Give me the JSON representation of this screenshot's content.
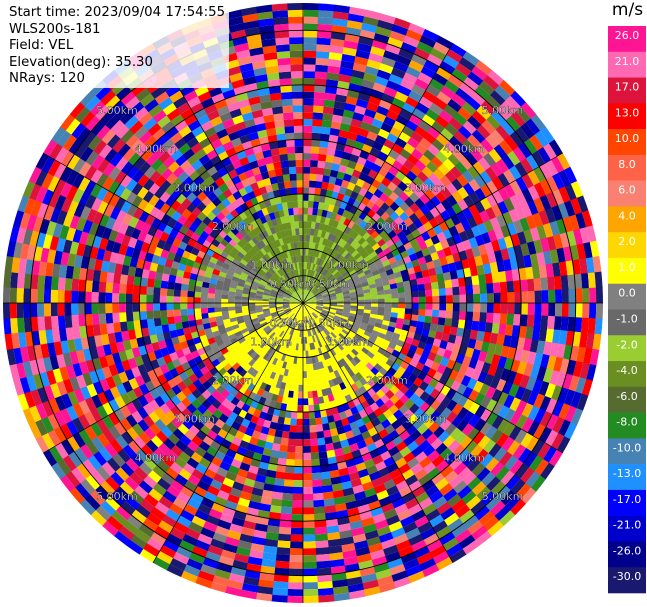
{
  "header": {
    "start_time": "Start time: 2023/09/04 17:54:55",
    "instrument": "WLS200s-181",
    "field": "Field: VEL",
    "elevation": "Elevation(deg): 35.30",
    "nrays": "NRays: 120"
  },
  "chart_data": {
    "type": "heatmap",
    "projection": "polar-ppi",
    "field": "VEL",
    "unit": "m/s",
    "nrays": 120,
    "range_rings_km": [
      0.5,
      1.0,
      2.0,
      3.0,
      4.0,
      5.0
    ],
    "range_ring_labels": [
      "0.50km",
      "1.00km",
      "2.00km",
      "3.00km",
      "4.00km",
      "5.00km"
    ],
    "max_range_km": 5.5,
    "colorbar": {
      "unit_label": "m/s",
      "tick_labels": [
        "26.0",
        "21.0",
        "17.0",
        "13.0",
        "10.0",
        "8.0",
        "6.0",
        "4.0",
        "2.0",
        "1.0",
        "0.0",
        "-1.0",
        "-2.0",
        "-4.0",
        "-6.0",
        "-8.0",
        "-10.0",
        "-13.0",
        "-17.0",
        "-21.0",
        "-26.0",
        "-30.0"
      ],
      "bins": [
        {
          "lo": 26,
          "hi": 30,
          "color": "#ff1493"
        },
        {
          "lo": 21,
          "hi": 26,
          "color": "#ff69b4"
        },
        {
          "lo": 17,
          "hi": 21,
          "color": "#dc143c"
        },
        {
          "lo": 13,
          "hi": 17,
          "color": "#ff0000"
        },
        {
          "lo": 10,
          "hi": 13,
          "color": "#ff4500"
        },
        {
          "lo": 8,
          "hi": 10,
          "color": "#ff6347"
        },
        {
          "lo": 6,
          "hi": 8,
          "color": "#fa8072"
        },
        {
          "lo": 4,
          "hi": 6,
          "color": "#ffa500"
        },
        {
          "lo": 2,
          "hi": 4,
          "color": "#ffd700"
        },
        {
          "lo": 1,
          "hi": 2,
          "color": "#ffff00"
        },
        {
          "lo": 0,
          "hi": 1,
          "color": "#808080"
        },
        {
          "lo": -1,
          "hi": 0,
          "color": "#696969"
        },
        {
          "lo": -2,
          "hi": -1,
          "color": "#9acd32"
        },
        {
          "lo": -4,
          "hi": -2,
          "color": "#6b8e23"
        },
        {
          "lo": -6,
          "hi": -4,
          "color": "#556b2f"
        },
        {
          "lo": -8,
          "hi": -6,
          "color": "#228b22"
        },
        {
          "lo": -10,
          "hi": -8,
          "color": "#4682b4"
        },
        {
          "lo": -13,
          "hi": -10,
          "color": "#1e90ff"
        },
        {
          "lo": -17,
          "hi": -13,
          "color": "#0000ff"
        },
        {
          "lo": -21,
          "hi": -17,
          "color": "#0000cd"
        },
        {
          "lo": -26,
          "hi": -21,
          "color": "#00008b"
        },
        {
          "lo": -30,
          "hi": -26,
          "color": "#191970"
        }
      ]
    },
    "valid_data_region": {
      "inner_km": 0.0,
      "clean_until_km": 2.0,
      "noise_beyond_km": 2.0,
      "pattern": "Near-range (<2 km): northern half mostly -2 to -4 m/s (green/olive), southern half mostly 1 to 2 m/s (yellow), scattered 0 to -1 m/s (gray). Beyond ~2 km: random noise across the full -30 to 30 m/s range."
    }
  }
}
